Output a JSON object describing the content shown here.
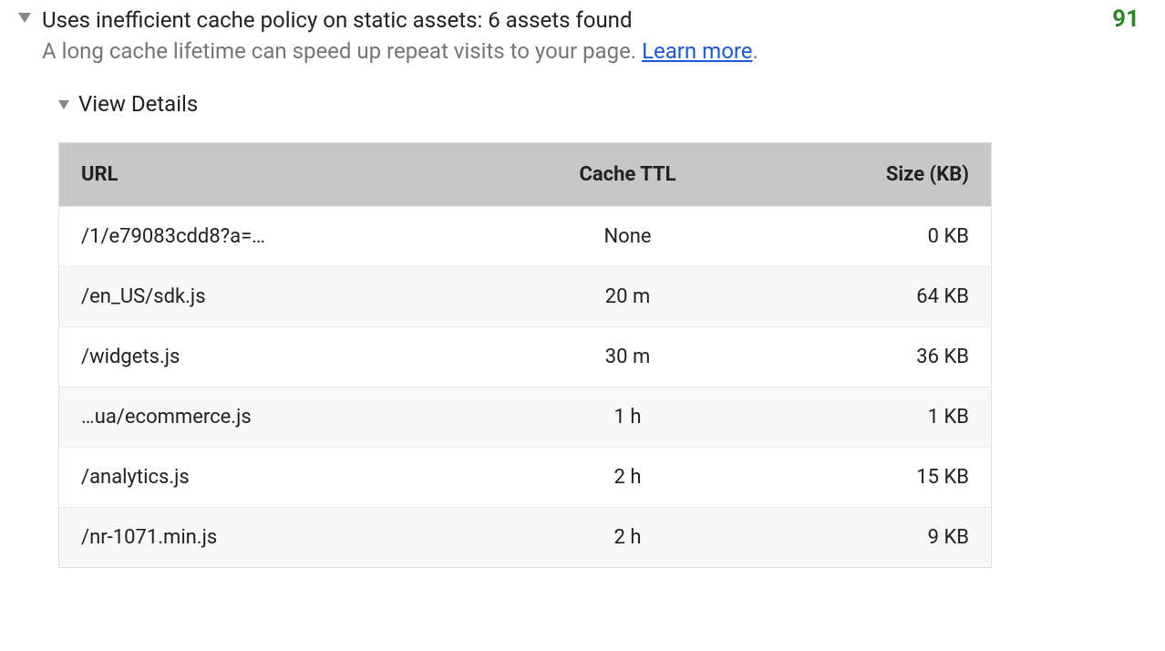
{
  "audit": {
    "title": "Uses inefficient cache policy on static assets: 6 assets found",
    "description": "A long cache lifetime can speed up repeat visits to your page. ",
    "learn_more_label": "Learn more",
    "description_suffix": ".",
    "score": "91",
    "score_color": "#2d882d"
  },
  "details": {
    "toggle_label": "View Details",
    "columns": {
      "url": "URL",
      "ttl": "Cache TTL",
      "size": "Size (KB)"
    },
    "rows": [
      {
        "url": "/1/e79083cdd8?a=…",
        "ttl": "None",
        "size": "0 KB"
      },
      {
        "url": "/en_US/sdk.js",
        "ttl": "20 m",
        "size": "64 KB"
      },
      {
        "url": "/widgets.js",
        "ttl": "30 m",
        "size": "36 KB"
      },
      {
        "url": "…ua/ecommerce.js",
        "ttl": "1 h",
        "size": "1 KB"
      },
      {
        "url": "/analytics.js",
        "ttl": "2 h",
        "size": "15 KB"
      },
      {
        "url": "/nr-1071.min.js",
        "ttl": "2 h",
        "size": "9 KB"
      }
    ]
  },
  "styles": {
    "header_bg": "#c7c7c7",
    "row_alt_bg": "#f8f8f8",
    "border_color": "#e0e0e0",
    "text_color": "#212121",
    "muted_text_color": "#757575",
    "link_color": "#1a5ad8",
    "chevron_color": "#888888"
  }
}
